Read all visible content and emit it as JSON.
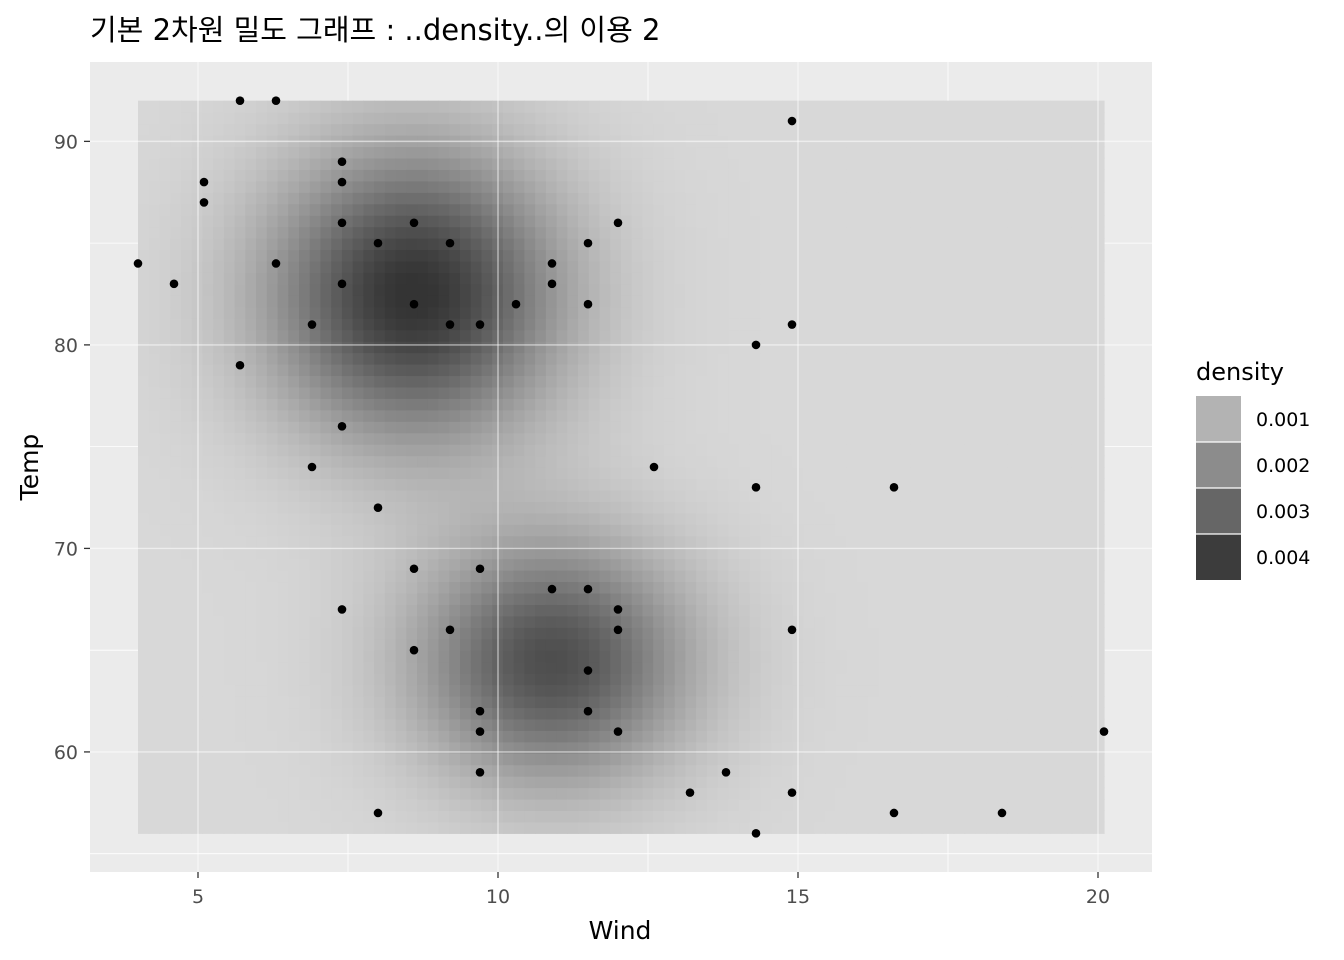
{
  "chart_data": {
    "type": "heatmap",
    "overlay": "scatter",
    "title": "기본 2차원 밀도 그래프 : ..density..의 이용 2",
    "xlabel": "Wind",
    "ylabel": "Temp",
    "xlim": [
      3.2,
      20.9
    ],
    "ylim": [
      54.1,
      93.9
    ],
    "x_ticks": [
      5,
      10,
      15,
      20
    ],
    "y_ticks": [
      60,
      70,
      80,
      90
    ],
    "x_tick_labels": [
      "5",
      "10",
      "15",
      "20"
    ],
    "y_tick_labels": [
      "60",
      "70",
      "80",
      "90"
    ],
    "grid": true,
    "density_extent": {
      "x": [
        4.0,
        20.1
      ],
      "y": [
        56,
        92
      ]
    },
    "density_peaks": [
      {
        "x": 8.6,
        "y": 82.5,
        "density": 0.0045
      },
      {
        "x": 10.9,
        "y": 64.5,
        "density": 0.0038
      }
    ],
    "legend": {
      "title": "density",
      "position": "right",
      "entries": [
        {
          "label": "0.001",
          "color": "#b3b3b3"
        },
        {
          "label": "0.002",
          "color": "#8c8c8c"
        },
        {
          "label": "0.003",
          "color": "#666666"
        },
        {
          "label": "0.004",
          "color": "#3c3c3c"
        }
      ]
    },
    "points": [
      {
        "x": 5.7,
        "y": 92
      },
      {
        "x": 6.3,
        "y": 92
      },
      {
        "x": 14.9,
        "y": 91
      },
      {
        "x": 7.4,
        "y": 89
      },
      {
        "x": 5.1,
        "y": 88
      },
      {
        "x": 7.4,
        "y": 88
      },
      {
        "x": 5.1,
        "y": 87
      },
      {
        "x": 7.4,
        "y": 86
      },
      {
        "x": 8.6,
        "y": 86
      },
      {
        "x": 12.0,
        "y": 86
      },
      {
        "x": 8.0,
        "y": 85
      },
      {
        "x": 9.2,
        "y": 85
      },
      {
        "x": 11.5,
        "y": 85
      },
      {
        "x": 4.0,
        "y": 84
      },
      {
        "x": 6.3,
        "y": 84
      },
      {
        "x": 10.9,
        "y": 84
      },
      {
        "x": 4.6,
        "y": 83
      },
      {
        "x": 7.4,
        "y": 83
      },
      {
        "x": 10.9,
        "y": 83
      },
      {
        "x": 8.6,
        "y": 82
      },
      {
        "x": 10.3,
        "y": 82
      },
      {
        "x": 11.5,
        "y": 82
      },
      {
        "x": 6.9,
        "y": 81
      },
      {
        "x": 9.2,
        "y": 81
      },
      {
        "x": 9.7,
        "y": 81
      },
      {
        "x": 14.9,
        "y": 81
      },
      {
        "x": 14.3,
        "y": 80
      },
      {
        "x": 5.7,
        "y": 79
      },
      {
        "x": 7.4,
        "y": 76
      },
      {
        "x": 6.9,
        "y": 74
      },
      {
        "x": 12.6,
        "y": 74
      },
      {
        "x": 14.3,
        "y": 73
      },
      {
        "x": 16.6,
        "y": 73
      },
      {
        "x": 8.0,
        "y": 72
      },
      {
        "x": 8.6,
        "y": 69
      },
      {
        "x": 9.7,
        "y": 69
      },
      {
        "x": 10.9,
        "y": 68
      },
      {
        "x": 11.5,
        "y": 68
      },
      {
        "x": 7.4,
        "y": 67
      },
      {
        "x": 12.0,
        "y": 67
      },
      {
        "x": 9.2,
        "y": 66
      },
      {
        "x": 12.0,
        "y": 66
      },
      {
        "x": 14.9,
        "y": 66
      },
      {
        "x": 8.6,
        "y": 65
      },
      {
        "x": 11.5,
        "y": 64
      },
      {
        "x": 9.7,
        "y": 62
      },
      {
        "x": 11.5,
        "y": 62
      },
      {
        "x": 9.7,
        "y": 61
      },
      {
        "x": 12.0,
        "y": 61
      },
      {
        "x": 20.1,
        "y": 61
      },
      {
        "x": 9.7,
        "y": 59
      },
      {
        "x": 13.8,
        "y": 59
      },
      {
        "x": 13.2,
        "y": 58
      },
      {
        "x": 14.9,
        "y": 58
      },
      {
        "x": 8.0,
        "y": 57
      },
      {
        "x": 16.6,
        "y": 57
      },
      {
        "x": 18.4,
        "y": 57
      },
      {
        "x": 14.3,
        "y": 56
      }
    ]
  }
}
